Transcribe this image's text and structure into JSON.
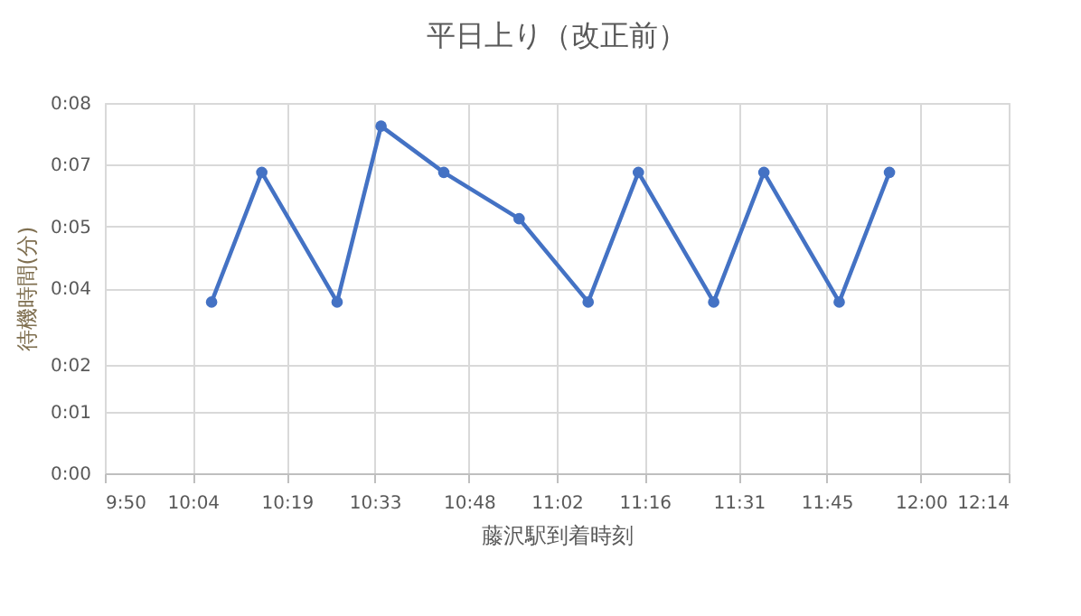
{
  "chart_data": {
    "type": "line",
    "title": "平日上り（改正前）",
    "xlabel": "藤沢駅到着時刻",
    "ylabel": "待機時間(分)",
    "x": [
      10.1167,
      10.25,
      10.45,
      10.5667,
      10.7333,
      10.9333,
      11.1167,
      11.25,
      11.45,
      11.5833,
      11.7833,
      11.9167
    ],
    "series": [
      {
        "color": "#4472c4",
        "values": [
          3.7,
          6.5,
          3.7,
          7.5,
          6.5,
          5.5,
          3.7,
          6.5,
          3.7,
          6.5,
          3.7,
          6.5
        ]
      }
    ],
    "xlim": [
      9.8333,
      12.2333
    ],
    "xticks": [
      {
        "value": 9.8333,
        "label": "9:50"
      },
      {
        "value": 10.0667,
        "label": "10:04"
      },
      {
        "value": 10.3167,
        "label": "10:19"
      },
      {
        "value": 10.55,
        "label": "10:33"
      },
      {
        "value": 10.8,
        "label": "10:48"
      },
      {
        "value": 11.0333,
        "label": "11:02"
      },
      {
        "value": 11.2667,
        "label": "11:16"
      },
      {
        "value": 11.5167,
        "label": "11:31"
      },
      {
        "value": 11.75,
        "label": "11:45"
      },
      {
        "value": 12.0,
        "label": "12:00"
      },
      {
        "value": 12.2333,
        "label": "12:14"
      }
    ],
    "ylim": [
      0,
      8
    ],
    "yticks": [
      {
        "value": 0,
        "label": "0:00"
      },
      {
        "value": 1.3333,
        "label": "0:01"
      },
      {
        "value": 2.3333,
        "label": "0:02"
      },
      {
        "value": 4,
        "label": "0:04"
      },
      {
        "value": 5.3333,
        "label": "0:05"
      },
      {
        "value": 6.6667,
        "label": "0:07"
      },
      {
        "value": 8,
        "label": "0:08"
      }
    ],
    "grid": true,
    "marker": "circle",
    "line_style": "solid",
    "legend": false
  }
}
